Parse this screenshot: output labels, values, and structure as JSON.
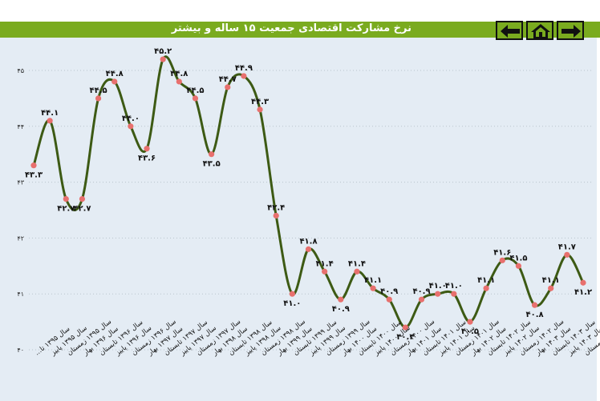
{
  "header": {
    "title": "نرخ مشارکت اقتصادی جمعیت ۱۵ ساله و بیشتر",
    "buttons": [
      {
        "name": "back-button",
        "icon": "arrow-left-icon"
      },
      {
        "name": "home-button",
        "icon": "home-icon"
      },
      {
        "name": "forward-button",
        "icon": "arrow-right-icon"
      }
    ]
  },
  "colors": {
    "line": "#3d5a14",
    "marker": "#e8706e",
    "header": "#7aab1f",
    "background": "#e4ecf4"
  },
  "chart_data": {
    "type": "line",
    "title": "نرخ مشارکت اقتصادی جمعیت ۱۵ ساله و بیشتر",
    "xlabel": "",
    "ylabel": "",
    "ylim": [
      40,
      45.5
    ],
    "y_ticks": [
      {
        "value": 40,
        "label": "۴۰"
      },
      {
        "value": 41,
        "label": "۴۱"
      },
      {
        "value": 42,
        "label": "۴۲"
      },
      {
        "value": 43,
        "label": "۴۳"
      },
      {
        "value": 44,
        "label": "۴۴"
      },
      {
        "value": 45,
        "label": "۴۵"
      }
    ],
    "grid": true,
    "smooth": true,
    "categories": [
      "سال ۱۳۹۵ تا...",
      "سال ۱۳۹۵ پاییز",
      "سال ۱۳۹۵ زمستان",
      "سال ۱۳۹۶ بهار",
      "سال ۱۳۹۶ تابستان",
      "سال ۱۳۹۶ پاییز",
      "سال ۱۳۹۶ زمستان",
      "سال ۱۳۹۷ بهار",
      "سال ۱۳۹۷ تابستان",
      "سال ۱۳۹۷ پاییز",
      "سال ۱۳۹۷ زمستان",
      "سال ۱۳۹۸ بهار",
      "سال ۱۳۹۸ تابستان",
      "سال ۱۳۹۸ پاییز",
      "سال ۱۳۹۸ زمستان",
      "سال ۱۳۹۹ بهار",
      "سال ۱۳۹۹ تابستان",
      "سال ۱۳۹۹ پاییز",
      "سال ۱۳۹۹ زمستان",
      "سال ۱۴۰۰ بهار",
      "سال ۱۴۰۰ تابستان",
      "سال ۱۴۰۰ پاییز",
      "سال ۱۴۰۰ زمستان",
      "سال ۱۴۰۱ بهار",
      "سال ۱۴۰۱ تابستان",
      "سال ۱۴۰۱ پاییز",
      "سال ۱۴۰۱ زمستان",
      "سال ۱۴۰۲ بهار",
      "سال ۱۴۰۲ تابستان",
      "سال ۱۴۰۲ پاییز",
      "سال ۱۴۰۲ زمستان",
      "سال ۱۴۰۳ بهار",
      "سال ۱۴۰۳ تابستان",
      "سال ۱۴۰۳ پاییز",
      "سال ۱۴۰۳ زمستان"
    ],
    "series": [
      {
        "values": [
          43.3,
          44.1,
          42.7,
          42.7,
          44.5,
          44.8,
          44.0,
          43.6,
          45.2,
          44.8,
          44.5,
          43.5,
          44.7,
          44.9,
          44.3,
          42.4,
          41.0,
          41.8,
          41.4,
          40.9,
          41.4,
          41.1,
          40.9,
          40.4,
          40.9,
          41.0,
          41.0,
          40.5,
          41.1,
          41.6,
          41.5,
          40.8,
          41.1,
          41.7,
          41.2
        ],
        "labels": [
          "۴۳.۳",
          "۴۴.۱",
          "۴۲.۷",
          "۴۲.۷",
          "۴۴.۵",
          "۴۴.۸",
          "۴۴.۰",
          "۴۳.۶",
          "۴۵.۲",
          "۴۴.۸",
          "۴۴.۵",
          "۴۳.۵",
          "۴۴.۷",
          "۴۴.۹",
          "۴۴.۳",
          "۴۲.۴",
          "۴۱.۰",
          "۴۱.۸",
          "۴۱.۴",
          "۴۰.۹",
          "۴۱.۴",
          "۴۱.۱",
          "۴۰.۹",
          "۴۰.۴",
          "۴۰.۹",
          "۴۱.۰",
          "۴۱.۰",
          "۴۰.۵",
          "۴۱.۱",
          "۴۱.۶",
          "۴۱.۵",
          "۴۰.۸",
          "۴۱.۱",
          "۴۱.۷",
          "۴۱.۲"
        ]
      }
    ]
  }
}
